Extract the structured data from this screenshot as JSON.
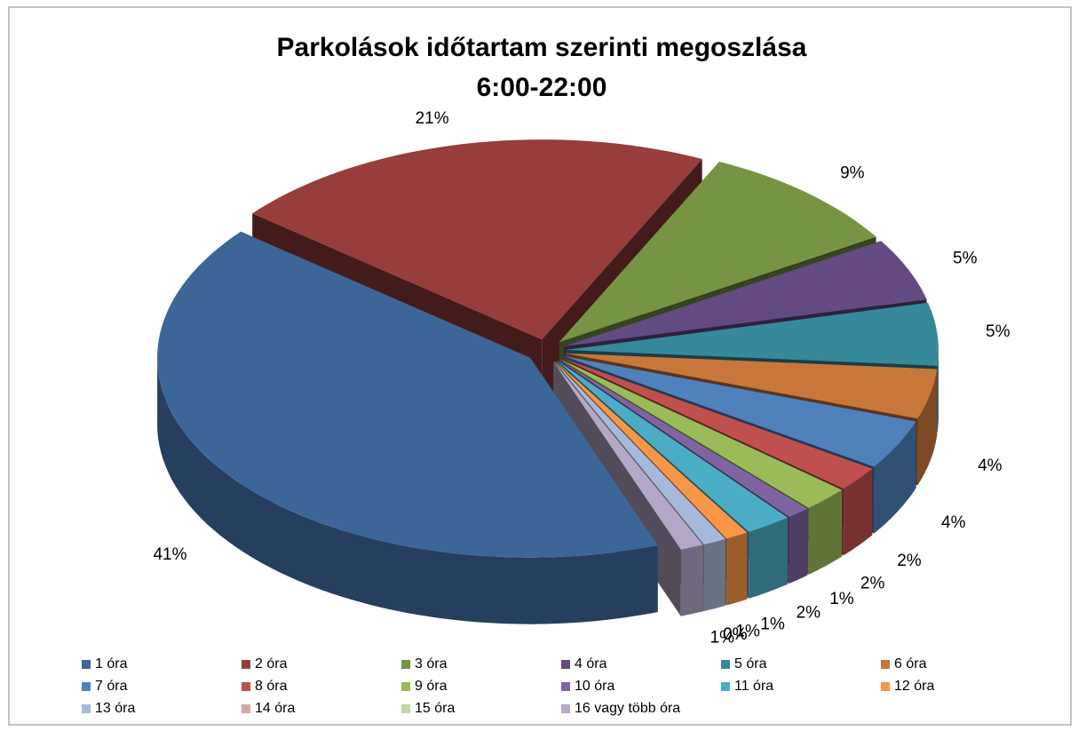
{
  "chart_data": {
    "type": "pie3d",
    "title": [
      "Parkolások időtartam szerinti megoszlása",
      "6:00-22:00"
    ],
    "categories": [
      "1 óra",
      "2 óra",
      "3 óra",
      "4 óra",
      "5 óra",
      "6 óra",
      "7 óra",
      "8 óra",
      "9 óra",
      "10 óra",
      "11 óra",
      "12 óra",
      "13 óra",
      "14 óra",
      "15 óra",
      "16 vagy több óra"
    ],
    "values": [
      41,
      21,
      9,
      5,
      5,
      4,
      4,
      2,
      2,
      1,
      2,
      1,
      1,
      0,
      0,
      1
    ],
    "value_labels": [
      "41%",
      "21%",
      "9%",
      "5%",
      "5%",
      "4%",
      "4%",
      "2%",
      "2%",
      "1%",
      "2%",
      "1%",
      "1%",
      "0%",
      "0%",
      "1%"
    ],
    "colors": [
      "#3d6698",
      "#973d3b",
      "#779444",
      "#634b82",
      "#37889b",
      "#c8773a",
      "#4f81bd",
      "#c0504d",
      "#9bbb59",
      "#8064a2",
      "#4bacc6",
      "#f79646",
      "#a7b9d8",
      "#d9a6a5",
      "#c3d6a8",
      "#b4a7c8"
    ],
    "legend": "bottom"
  }
}
